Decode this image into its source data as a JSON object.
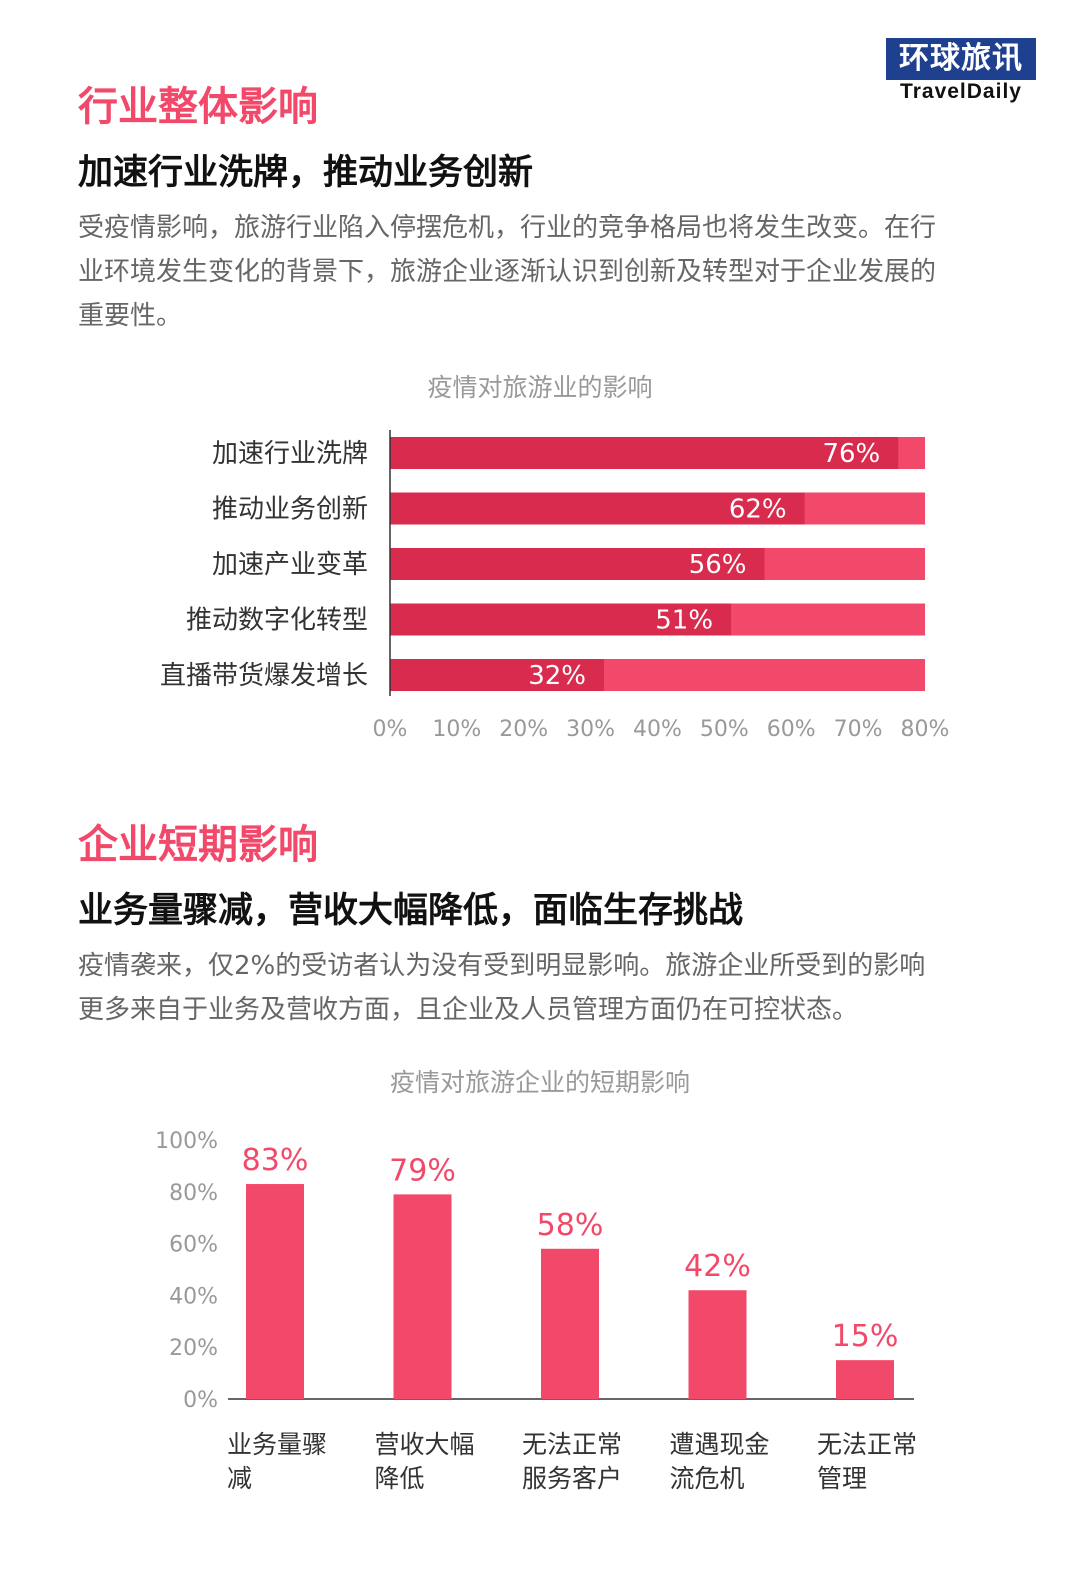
{
  "logo": {
    "cn": "环球旅讯",
    "en": "TravelDaily"
  },
  "section1": {
    "title": "行业整体影响",
    "subtitle": "加速行业洗牌，推动业务创新",
    "paragraph": [
      "受疫情影响，旅游行业陷入停摆危机，行业的竞争格局也将发生改变。在行",
      "业环境发生变化的背景下，旅游企业逐渐认识到创新及转型对于企业发展的",
      "重要性。"
    ],
    "chart_title": "疫情对旅游业的影响"
  },
  "section2": {
    "title": "企业短期影响",
    "subtitle": "业务量骤减，营收大幅降低，面临生存挑战",
    "paragraph": [
      "疫情袭来，仅2%的受访者认为没有受到明显影响。旅游企业所受到的影响",
      "更多来自于业务及营收方面，且企业及人员管理方面仍在可控状态。"
    ],
    "chart_title": "疫情对旅游企业的短期影响"
  },
  "colors": {
    "accent": "#f2496b",
    "bar_dark": "#d92b4e",
    "bar_light": "#f2496b",
    "logo_bg": "#1f3f8f"
  },
  "chart_data": [
    {
      "type": "bar",
      "orientation": "horizontal",
      "title": "疫情对旅游业的影响",
      "categories": [
        "加速行业洗牌",
        "推动业务创新",
        "加速产业变革",
        "推动数字化转型",
        "直播带货爆发增长"
      ],
      "values": [
        76,
        62,
        56,
        51,
        32
      ],
      "data_labels": [
        "76%",
        "62%",
        "56%",
        "51%",
        "32%"
      ],
      "xlim": [
        0,
        80
      ],
      "x_ticks": [
        "0%",
        "10%",
        "20%",
        "30%",
        "40%",
        "50%",
        "60%",
        "70%",
        "80%"
      ],
      "background_bar_value": 80
    },
    {
      "type": "bar",
      "orientation": "vertical",
      "title": "疫情对旅游企业的短期影响",
      "categories": [
        [
          "业务量骤",
          "减"
        ],
        [
          "营收大幅",
          "降低"
        ],
        [
          "无法正常",
          "服务客户"
        ],
        [
          "遭遇现金",
          "流危机"
        ],
        [
          "无法正常",
          "管理"
        ]
      ],
      "values": [
        83,
        79,
        58,
        42,
        15
      ],
      "data_labels": [
        "83%",
        "79%",
        "58%",
        "42%",
        "15%"
      ],
      "ylim": [
        0,
        100
      ],
      "y_ticks": [
        "0%",
        "20%",
        "40%",
        "60%",
        "80%",
        "100%"
      ]
    }
  ]
}
